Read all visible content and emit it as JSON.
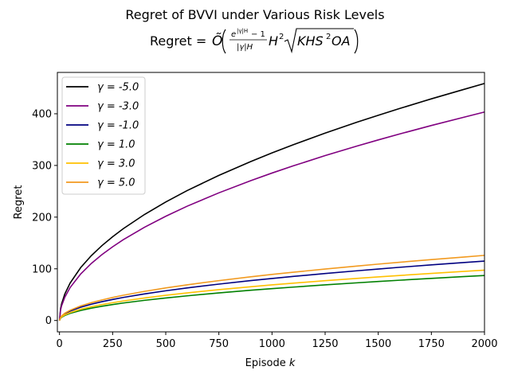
{
  "chart_data": {
    "type": "line",
    "title": "Regret of BVVI under Various Risk Levels",
    "subtitle": "Regret = Õ(e^{|γ|H}−1 / |γ|H · H² √(KHS²OA))",
    "xlabel": "Episode k",
    "ylabel": "Regret",
    "xlim": [
      -10,
      2000
    ],
    "ylim": [
      -22,
      480
    ],
    "xticks": [
      0,
      250,
      500,
      750,
      1000,
      1250,
      1500,
      1750,
      2000
    ],
    "yticks": [
      0,
      100,
      200,
      300,
      400
    ],
    "grid": false,
    "legend_position": "top-left",
    "x": [
      0,
      5,
      10,
      25,
      50,
      100,
      150,
      200,
      250,
      300,
      400,
      500,
      600,
      750,
      900,
      1000,
      1100,
      1250,
      1400,
      1500,
      1600,
      1750,
      1900,
      2000
    ],
    "series": [
      {
        "name": "γ = -5.0",
        "color": "#000000",
        "values": [
          0.0,
          22.9,
          32.4,
          51.3,
          72.5,
          102.5,
          125.6,
          145.0,
          162.1,
          177.6,
          205.1,
          229.3,
          251.2,
          280.8,
          307.6,
          324.3,
          340.1,
          362.6,
          383.7,
          397.1,
          410.1,
          428.9,
          446.8,
          458.6
        ]
      },
      {
        "name": "γ = -3.0",
        "color": "#800080",
        "values": [
          0.0,
          20.2,
          28.5,
          45.1,
          63.8,
          90.2,
          110.5,
          127.6,
          142.6,
          156.3,
          180.4,
          201.7,
          221.0,
          247.0,
          270.6,
          285.3,
          299.2,
          319.0,
          337.5,
          349.4,
          360.8,
          377.3,
          393.0,
          403.4
        ]
      },
      {
        "name": "γ = -1.0",
        "color": "#000080",
        "values": [
          0.0,
          5.8,
          8.1,
          12.9,
          18.2,
          25.7,
          31.5,
          36.4,
          40.7,
          44.6,
          51.4,
          57.5,
          63.0,
          70.4,
          77.2,
          81.3,
          85.3,
          90.9,
          96.2,
          99.6,
          102.9,
          107.6,
          112.1,
          115.0
        ]
      },
      {
        "name": "γ = 1.0",
        "color": "#008000",
        "values": [
          0.0,
          4.3,
          6.2,
          9.7,
          13.8,
          19.5,
          23.9,
          27.6,
          30.8,
          33.8,
          39.0,
          43.6,
          47.7,
          53.4,
          58.5,
          61.6,
          64.6,
          68.9,
          72.9,
          75.5,
          77.9,
          81.5,
          84.9,
          87.1
        ]
      },
      {
        "name": "γ = 3.0",
        "color": "#FFC000",
        "values": [
          0.0,
          4.9,
          6.9,
          10.9,
          15.4,
          21.8,
          26.7,
          30.8,
          34.4,
          37.7,
          43.6,
          48.7,
          53.4,
          59.7,
          65.3,
          68.9,
          72.2,
          77.0,
          81.5,
          84.4,
          87.1,
          91.1,
          94.9,
          97.4
        ]
      },
      {
        "name": "γ = 5.0",
        "color": "#F29A1F",
        "values": [
          0.0,
          6.3,
          8.9,
          14.1,
          19.9,
          28.2,
          34.5,
          39.8,
          44.5,
          48.8,
          56.3,
          63.0,
          69.0,
          77.1,
          84.5,
          89.1,
          93.4,
          99.6,
          105.4,
          109.1,
          112.7,
          117.8,
          122.7,
          126.0
        ]
      }
    ]
  }
}
